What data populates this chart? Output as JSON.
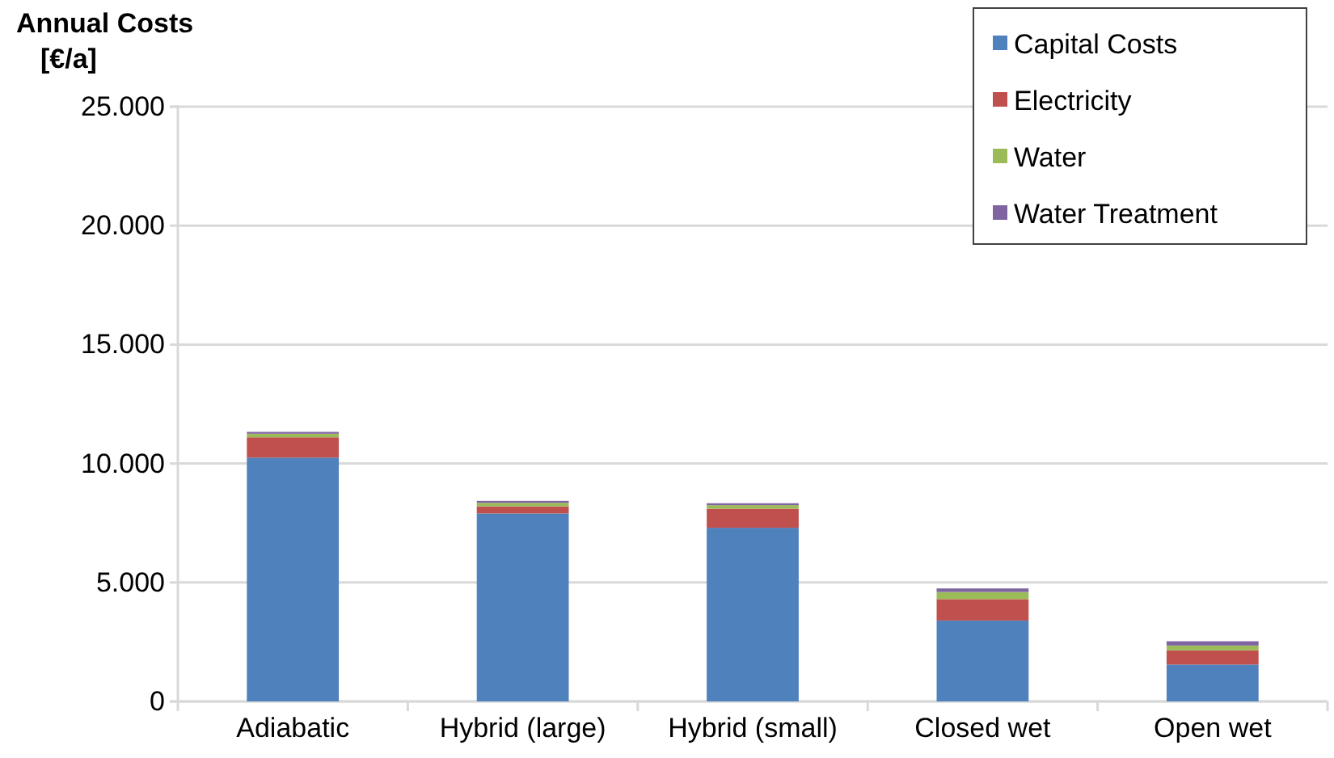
{
  "chart_data": {
    "type": "bar",
    "stacked": true,
    "ylabel": "Annual Costs\n[€/a]",
    "categories": [
      "Adiabatic",
      "Hybrid (large)",
      "Hybrid (small)",
      "Closed wet",
      "Open wet"
    ],
    "series": [
      {
        "name": "Capital Costs",
        "color": "#4f81bd",
        "values": [
          10250,
          7900,
          7300,
          3400,
          1550
        ]
      },
      {
        "name": "Electricity",
        "color": "#c0504d",
        "values": [
          850,
          300,
          800,
          900,
          600
        ]
      },
      {
        "name": "Water",
        "color": "#9bbb59",
        "values": [
          150,
          150,
          150,
          300,
          200
        ]
      },
      {
        "name": "Water Treatment",
        "color": "#8064a2",
        "values": [
          80,
          80,
          80,
          150,
          180
        ]
      }
    ],
    "ylim": [
      0,
      25000
    ],
    "yticks": [
      {
        "value": 0,
        "label": "0"
      },
      {
        "value": 5000,
        "label": "5.000"
      },
      {
        "value": 10000,
        "label": "10.000"
      },
      {
        "value": 15000,
        "label": "15.000"
      },
      {
        "value": 20000,
        "label": "20.000"
      },
      {
        "value": 25000,
        "label": "25.000"
      }
    ],
    "grid": "y",
    "legend": "top right"
  }
}
